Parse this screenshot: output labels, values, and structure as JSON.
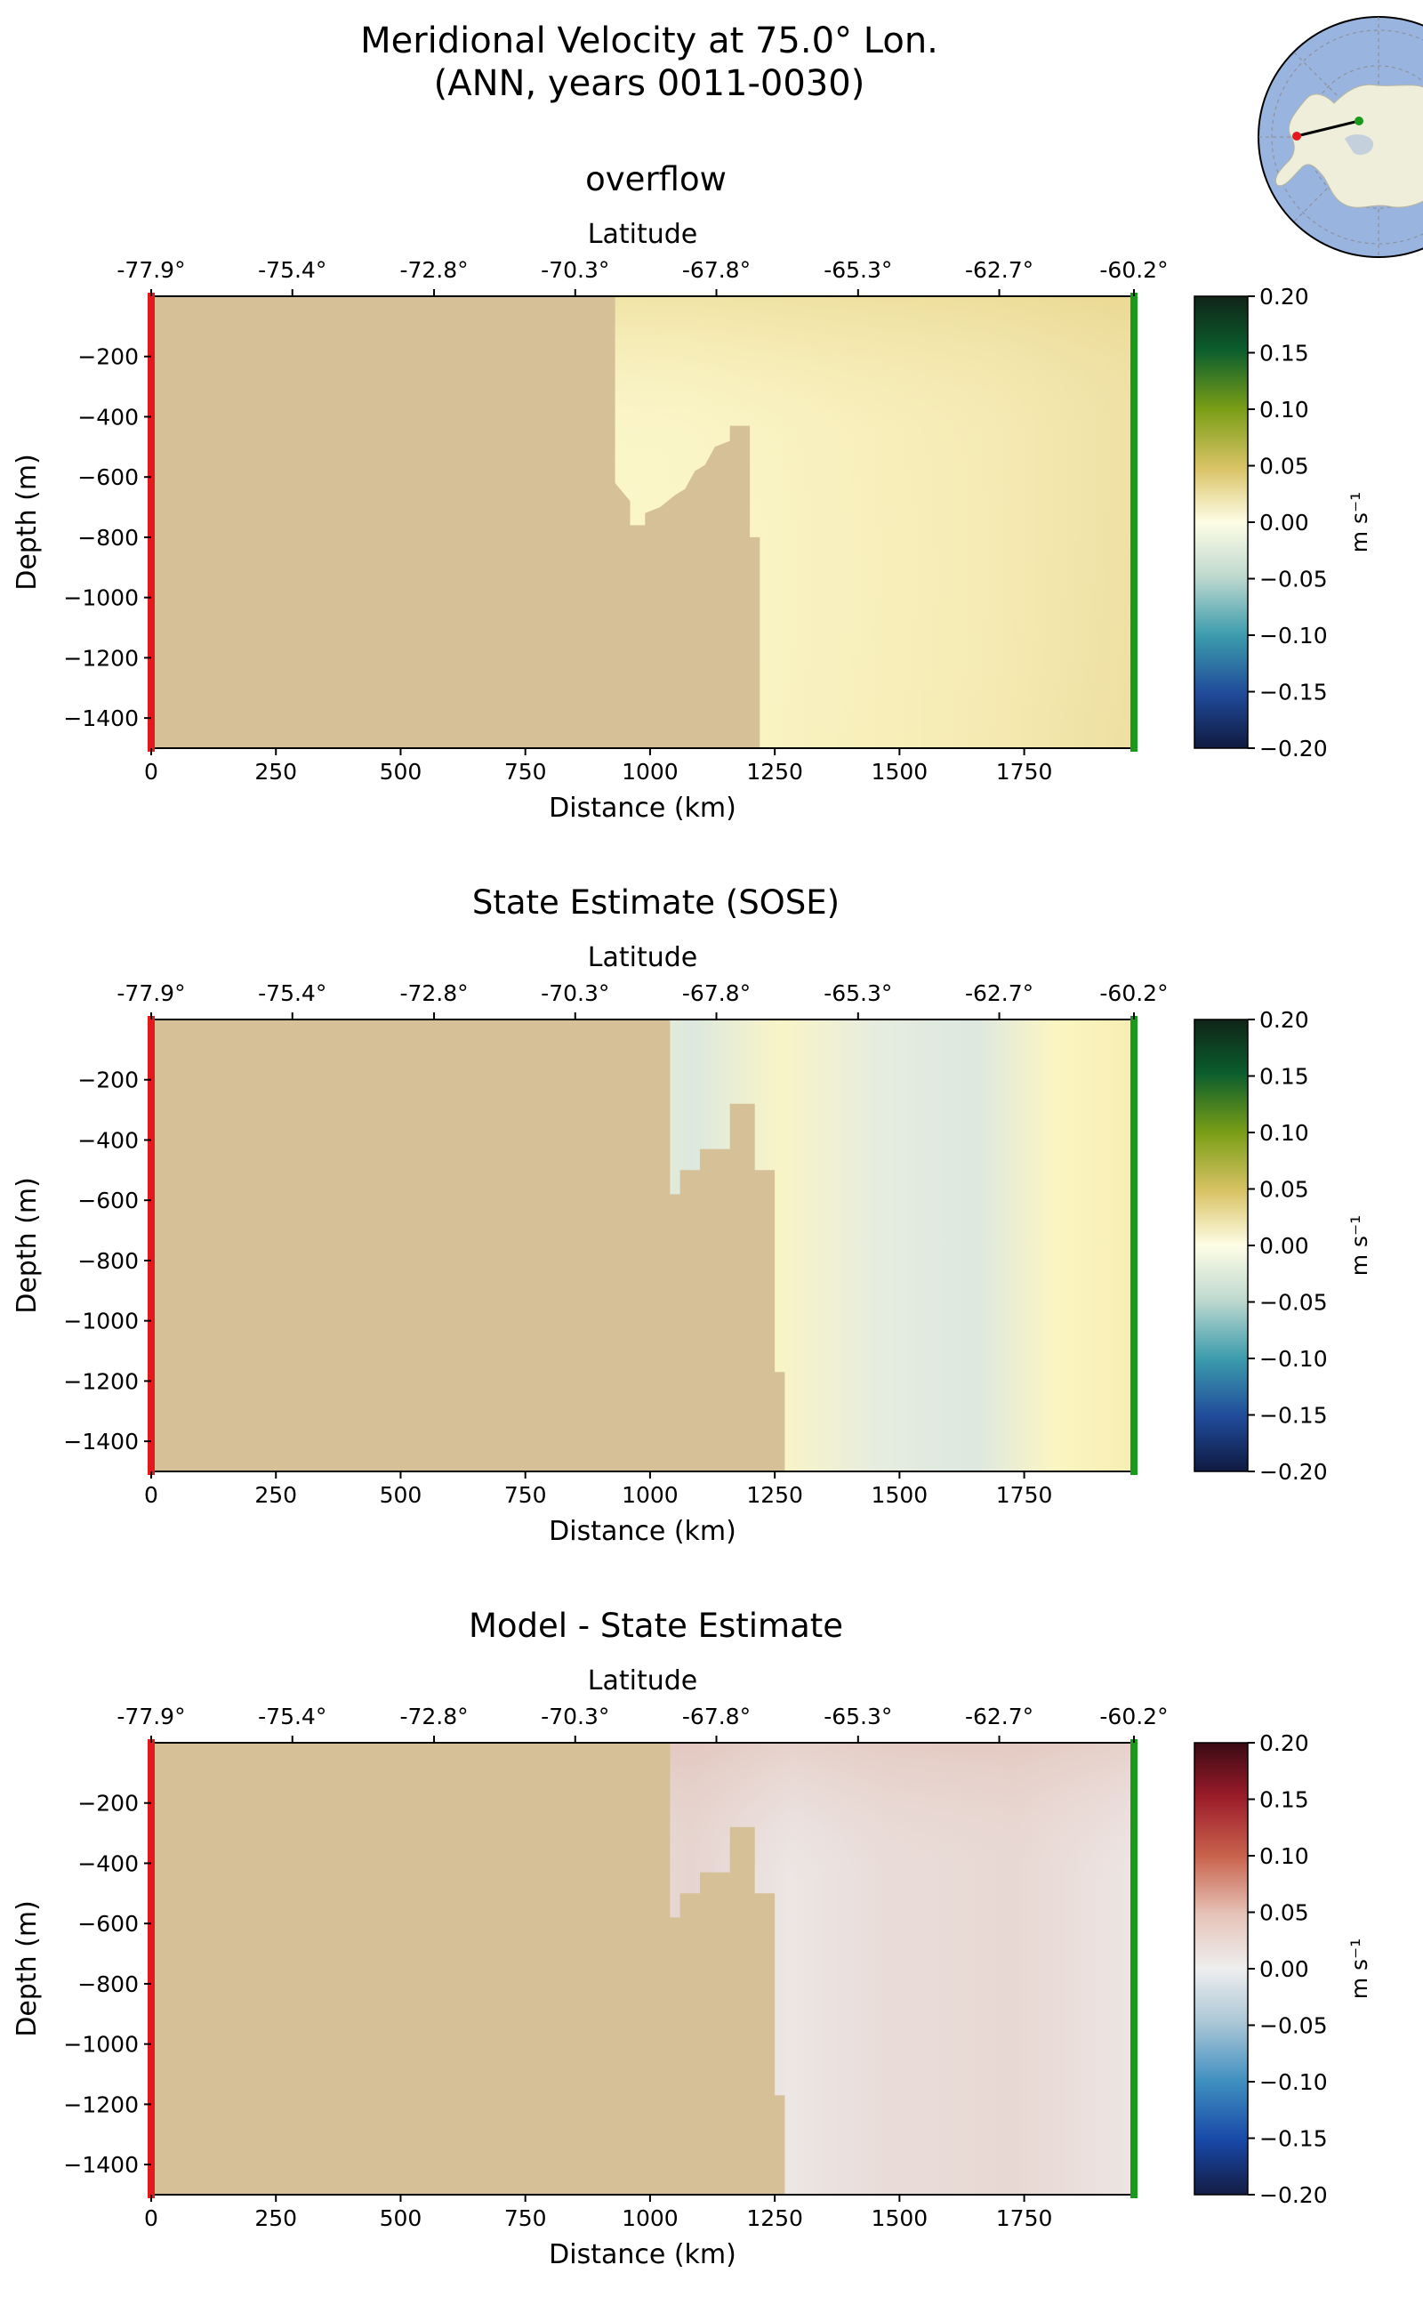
{
  "figure": {
    "title_line1": "Meridional Velocity at 75.0° Lon.",
    "title_line2": "(ANN, years 0011-0030)"
  },
  "inset_map": {
    "description_icon": "antarctica-polar-stereographic-map-icon",
    "section_start_marker_color": "#e31a1c",
    "section_end_marker_color": "#1a9a1a"
  },
  "chart_data": [
    {
      "type": "heatmap",
      "title": "overflow",
      "xlabel": "Distance (km)",
      "ylabel": "Depth (m)",
      "top_axis_label": "Latitude",
      "xlim": [
        0,
        1970
      ],
      "ylim": [
        -1500,
        0
      ],
      "x_ticks": [
        0,
        250,
        500,
        750,
        1000,
        1250,
        1500,
        1750
      ],
      "y_ticks": [
        -200,
        -400,
        -600,
        -800,
        -1000,
        -1200,
        -1400
      ],
      "lat_ticks": [
        "-77.9°",
        "-75.4°",
        "-72.8°",
        "-70.3°",
        "-67.8°",
        "-65.3°",
        "-62.7°",
        "-60.2°"
      ],
      "lat_tick_distance_km": [
        0,
        283,
        567,
        850,
        1133,
        1417,
        1700,
        1970
      ],
      "colorbar": {
        "label": "m s⁻¹",
        "ticks": [
          "0.20",
          "0.15",
          "0.10",
          "0.05",
          "0.00",
          "−0.05",
          "−0.10",
          "−0.15",
          "−0.20"
        ],
        "colormap": "yellow-green-blue diverging"
      },
      "bathymetry_km_depth": [
        [
          0,
          -1500
        ],
        [
          0,
          0
        ],
        [
          930,
          0
        ],
        [
          930,
          -620
        ],
        [
          960,
          -680
        ],
        [
          960,
          -760
        ],
        [
          990,
          -760
        ],
        [
          990,
          -720
        ],
        [
          1020,
          -700
        ],
        [
          1050,
          -660
        ],
        [
          1070,
          -640
        ],
        [
          1090,
          -580
        ],
        [
          1110,
          -560
        ],
        [
          1130,
          -500
        ],
        [
          1160,
          -480
        ],
        [
          1160,
          -430
        ],
        [
          1200,
          -430
        ],
        [
          1200,
          -800
        ],
        [
          1220,
          -800
        ],
        [
          1220,
          -1500
        ]
      ],
      "field_description": "weak positive velocities (~0.00 to 0.05 m/s) across the open ocean, strongest near the surface at the northern end",
      "field_values": {
        "near_surface_south": 0.01,
        "interior": 0.01,
        "north_surface": 0.04,
        "north_interior": 0.02
      },
      "section_start_color": "#e31a1c",
      "section_end_color": "#1a9a1a"
    },
    {
      "type": "heatmap",
      "title": "State Estimate (SOSE)",
      "xlabel": "Distance (km)",
      "ylabel": "Depth (m)",
      "top_axis_label": "Latitude",
      "xlim": [
        0,
        1970
      ],
      "ylim": [
        -1500,
        0
      ],
      "x_ticks": [
        0,
        250,
        500,
        750,
        1000,
        1250,
        1500,
        1750
      ],
      "y_ticks": [
        -200,
        -400,
        -600,
        -800,
        -1000,
        -1200,
        -1400
      ],
      "lat_ticks": [
        "-77.9°",
        "-75.4°",
        "-72.8°",
        "-70.3°",
        "-67.8°",
        "-65.3°",
        "-62.7°",
        "-60.2°"
      ],
      "lat_tick_distance_km": [
        0,
        283,
        567,
        850,
        1133,
        1417,
        1700,
        1970
      ],
      "colorbar": {
        "label": "m s⁻¹",
        "ticks": [
          "0.20",
          "0.15",
          "0.10",
          "0.05",
          "0.00",
          "−0.05",
          "−0.10",
          "−0.15",
          "−0.20"
        ],
        "colormap": "yellow-green-blue diverging"
      },
      "bathymetry_km_depth": [
        [
          0,
          -1500
        ],
        [
          0,
          0
        ],
        [
          1040,
          0
        ],
        [
          1040,
          -580
        ],
        [
          1060,
          -580
        ],
        [
          1060,
          -500
        ],
        [
          1100,
          -500
        ],
        [
          1100,
          -430
        ],
        [
          1160,
          -430
        ],
        [
          1160,
          -280
        ],
        [
          1210,
          -280
        ],
        [
          1210,
          -500
        ],
        [
          1250,
          -500
        ],
        [
          1250,
          -1170
        ],
        [
          1270,
          -1170
        ],
        [
          1270,
          -1500
        ]
      ],
      "field_description": "alternating weak positive and negative vertical bands",
      "field_values": {
        "bands": [
          0.02,
          -0.01,
          0.015,
          -0.02,
          0.01,
          -0.015,
          0.02
        ]
      },
      "section_start_color": "#e31a1c",
      "section_end_color": "#1a9a1a"
    },
    {
      "type": "heatmap",
      "title": "Model - State Estimate",
      "xlabel": "Distance (km)",
      "ylabel": "Depth (m)",
      "top_axis_label": "Latitude",
      "xlim": [
        0,
        1970
      ],
      "ylim": [
        -1500,
        0
      ],
      "x_ticks": [
        0,
        250,
        500,
        750,
        1000,
        1250,
        1500,
        1750
      ],
      "y_ticks": [
        -200,
        -400,
        -600,
        -800,
        -1000,
        -1200,
        -1400
      ],
      "lat_ticks": [
        "-77.9°",
        "-75.4°",
        "-72.8°",
        "-70.3°",
        "-67.8°",
        "-65.3°",
        "-62.7°",
        "-60.2°"
      ],
      "lat_tick_distance_km": [
        0,
        283,
        567,
        850,
        1133,
        1417,
        1700,
        1970
      ],
      "colorbar": {
        "label": "m s⁻¹",
        "ticks": [
          "0.20",
          "0.15",
          "0.10",
          "0.05",
          "0.00",
          "−0.05",
          "−0.10",
          "−0.15",
          "−0.20"
        ],
        "colormap": "red-white-blue diverging"
      },
      "bathymetry_km_depth": [
        [
          0,
          -1500
        ],
        [
          0,
          0
        ],
        [
          1040,
          0
        ],
        [
          1040,
          -580
        ],
        [
          1060,
          -580
        ],
        [
          1060,
          -500
        ],
        [
          1100,
          -500
        ],
        [
          1100,
          -430
        ],
        [
          1160,
          -430
        ],
        [
          1160,
          -280
        ],
        [
          1210,
          -280
        ],
        [
          1210,
          -500
        ],
        [
          1250,
          -500
        ],
        [
          1250,
          -1170
        ],
        [
          1270,
          -1170
        ],
        [
          1270,
          -1500
        ]
      ],
      "field_description": "small positive differences (~0.00 to 0.03 m/s), slightly larger near 1500-1850 km at the surface",
      "field_values": {
        "interior": 0.005,
        "band_1550km": 0.02,
        "surface_1800km": 0.03
      },
      "section_start_color": "#e31a1c",
      "section_end_color": "#1a9a1a"
    }
  ]
}
